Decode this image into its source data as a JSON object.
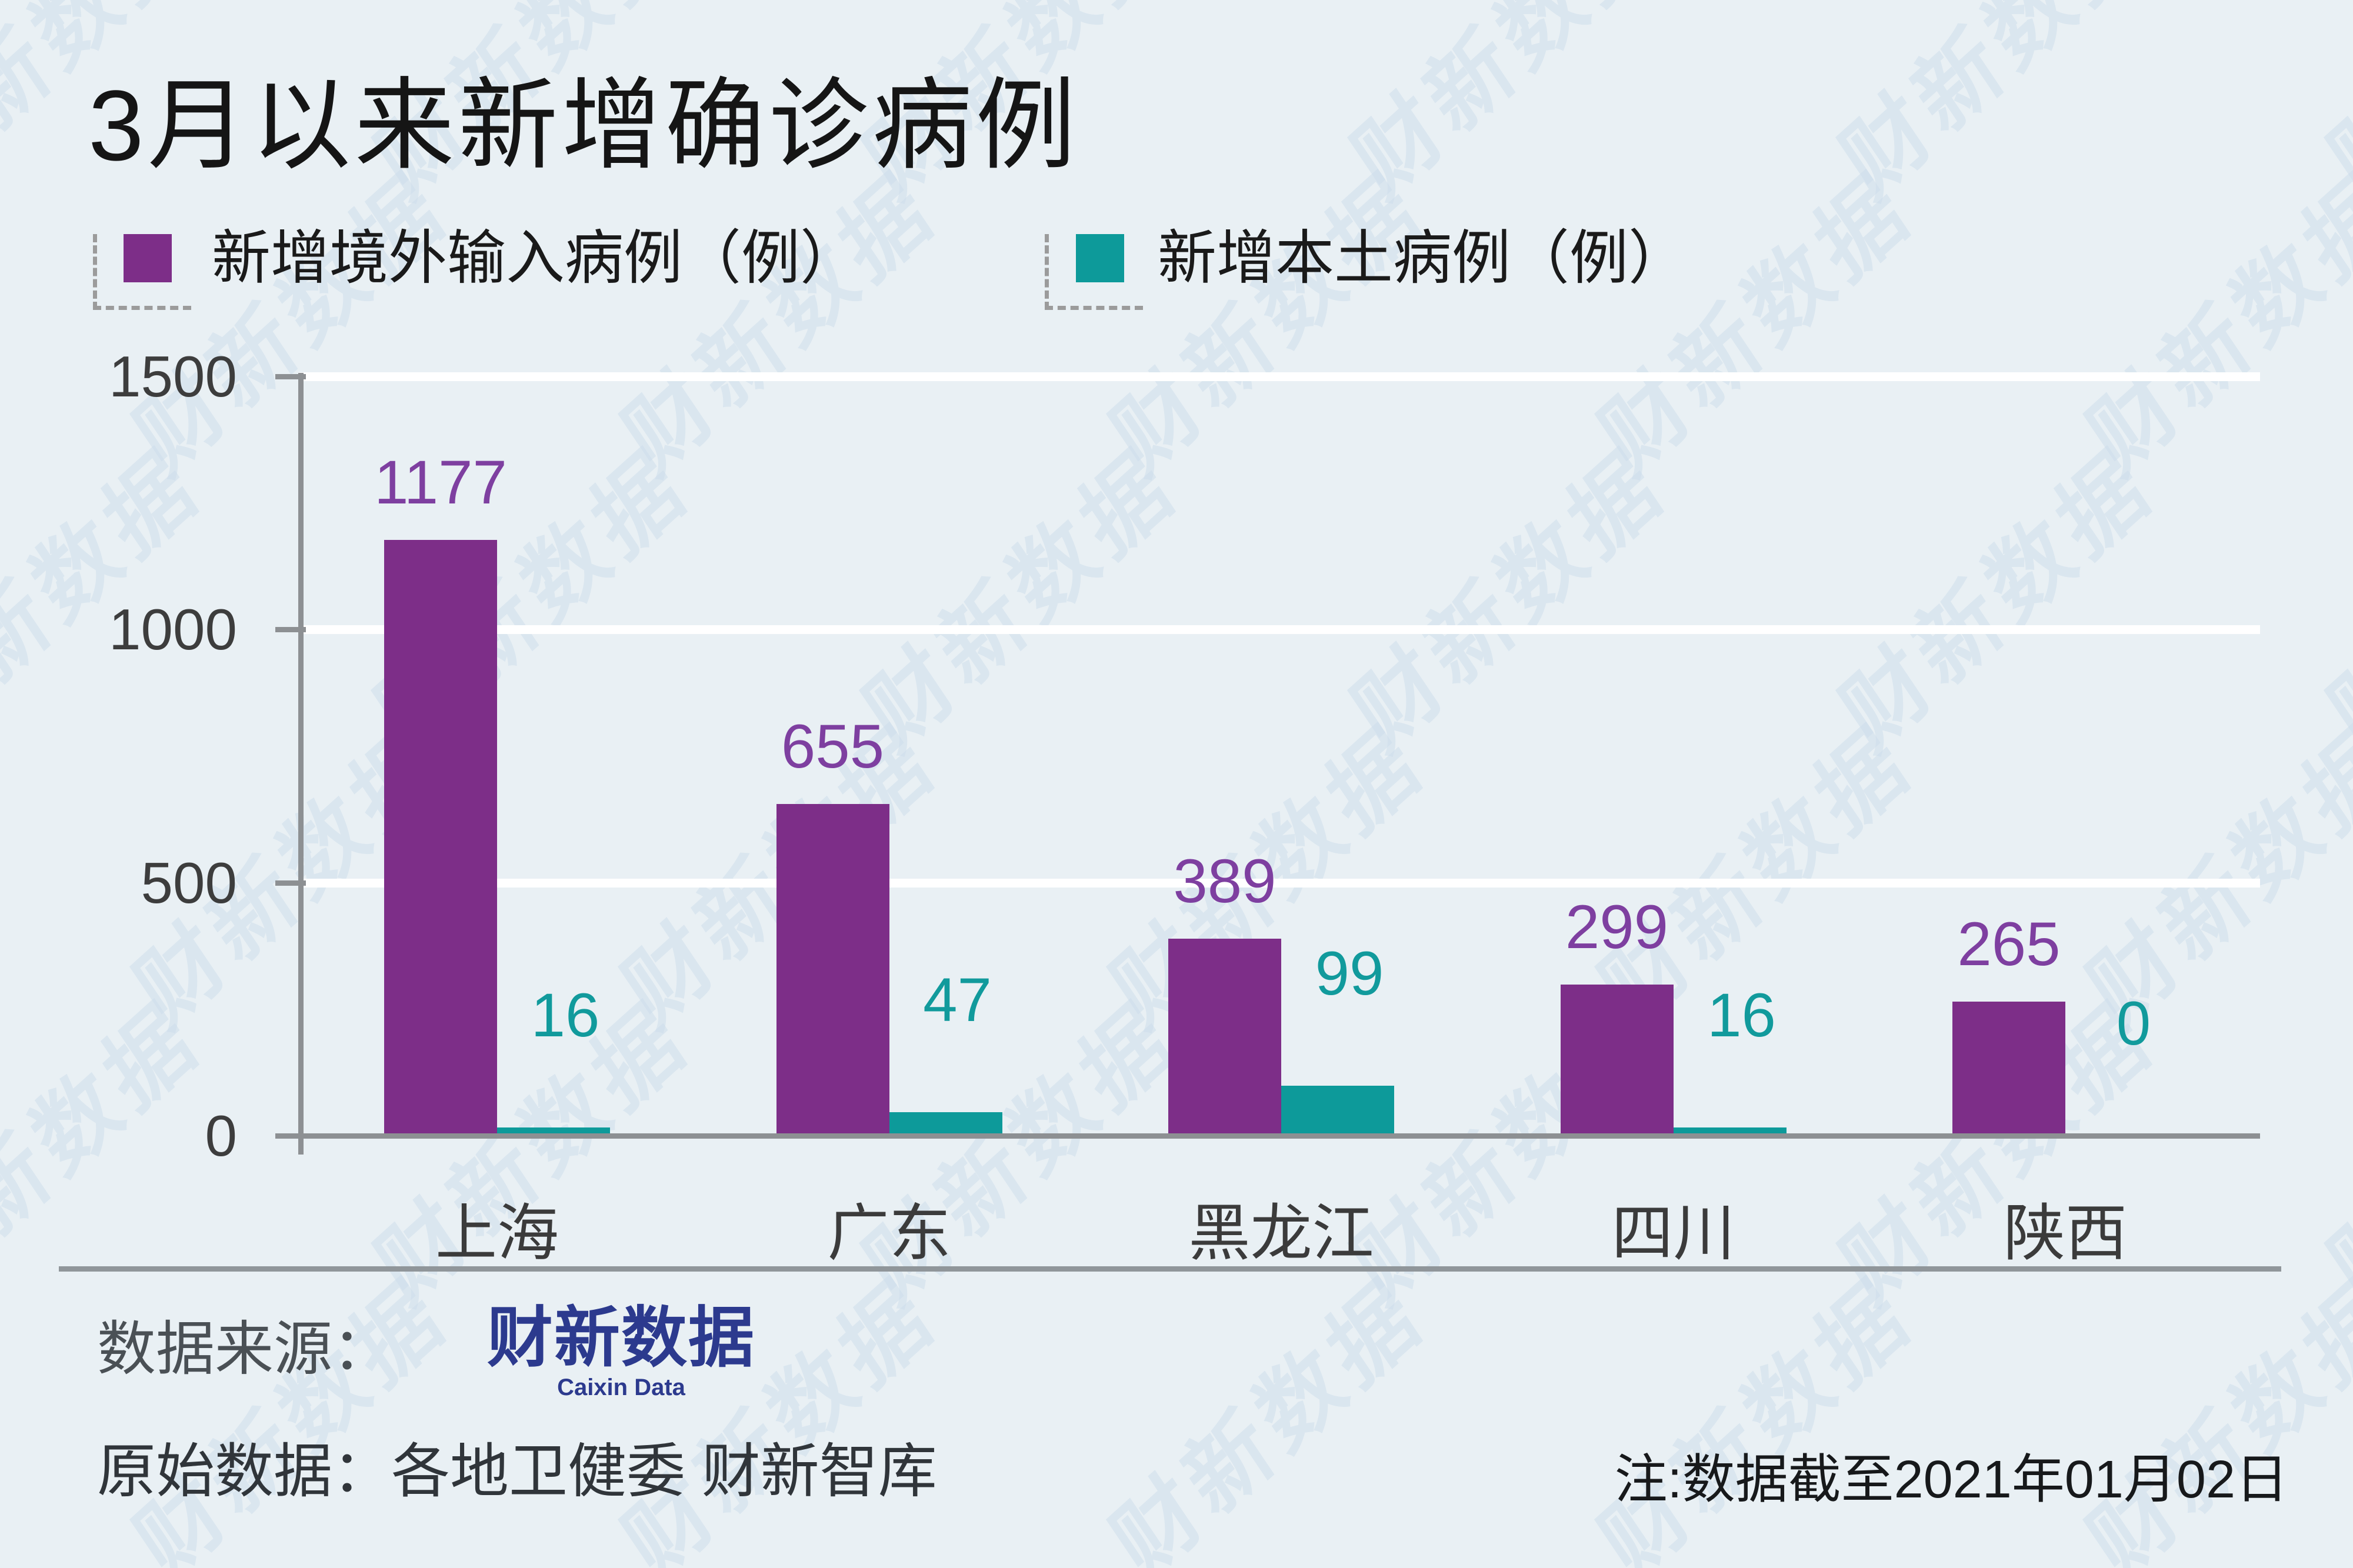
{
  "title": "3月以来新增确诊病例",
  "legend": {
    "imported": {
      "label": "新增境外输入病例（例）",
      "color": "#7d2e88"
    },
    "local": {
      "label": "新增本土病例（例）",
      "color": "#0d9a9a"
    }
  },
  "chart_data": {
    "type": "bar",
    "categories": [
      "上海",
      "广东",
      "黑龙江",
      "四川",
      "陕西"
    ],
    "series": [
      {
        "name": "新增境外输入病例（例）",
        "color": "#7d2e88",
        "label_color": "#7e3fa0",
        "values": [
          1177,
          655,
          389,
          299,
          265
        ]
      },
      {
        "name": "新增本土病例（例）",
        "color": "#0d9a9a",
        "label_color": "#119a9c",
        "values": [
          16,
          47,
          99,
          16,
          0
        ]
      }
    ],
    "ylim": [
      0,
      1500
    ],
    "yticks": [
      0,
      500,
      1000,
      1500
    ],
    "grid": true,
    "gridcolor": "#ffffff",
    "legend_position": "top-left",
    "bar_labels_shown": true
  },
  "footer": {
    "source_label": "数据来源：",
    "logo_text": "财新数据",
    "logo_subtitle": "Caixin Data",
    "raw_label": "原始数据：各地卫健委 财新智库",
    "note": "注:数据截至2021年01月02日"
  },
  "watermark": {
    "text": "财新数据"
  },
  "colors": {
    "background": "#e9f0f4",
    "axis": "#8d9093",
    "tick_text": "#3d3d3d",
    "title_text": "#151515",
    "separator": "#90969a",
    "logo_navy": "#2c3a8e",
    "watermark": "#cfdeec"
  }
}
